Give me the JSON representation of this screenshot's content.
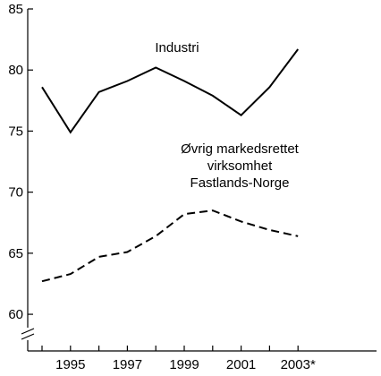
{
  "chart_data": {
    "type": "line",
    "x": [
      "1994",
      "1995",
      "1996",
      "1997",
      "1998",
      "1999",
      "2000",
      "2001",
      "2002",
      "2003*"
    ],
    "series": [
      {
        "name": "Industri",
        "style": "solid",
        "values": [
          78.6,
          74.9,
          78.2,
          79.1,
          80.2,
          79.1,
          77.9,
          76.3,
          78.6,
          81.7
        ]
      },
      {
        "name": "Øvrig markedsrettet virksomhet Fastlands-Norge",
        "style": "dashed",
        "values": [
          62.7,
          63.3,
          64.7,
          65.1,
          66.4,
          68.2,
          68.5,
          67.6,
          66.9,
          66.4
        ]
      }
    ],
    "ylim": [
      57,
      85
    ],
    "yticks": [
      60,
      65,
      70,
      75,
      80,
      85
    ],
    "ytick_labels": [
      "60",
      "65",
      "70",
      "75",
      "80",
      "85"
    ],
    "xtick_labels": [
      "1995",
      "1997",
      "1999",
      "2001",
      "2003*"
    ],
    "axis_break": true,
    "annotations": {
      "industri": "Industri",
      "ovrig_line1": "Øvrig markedsrettet",
      "ovrig_line2": "virksomhet",
      "ovrig_line3": "Fastlands-Norge"
    },
    "grid": false,
    "legend": "none",
    "colors": {
      "line": "#000000"
    }
  }
}
